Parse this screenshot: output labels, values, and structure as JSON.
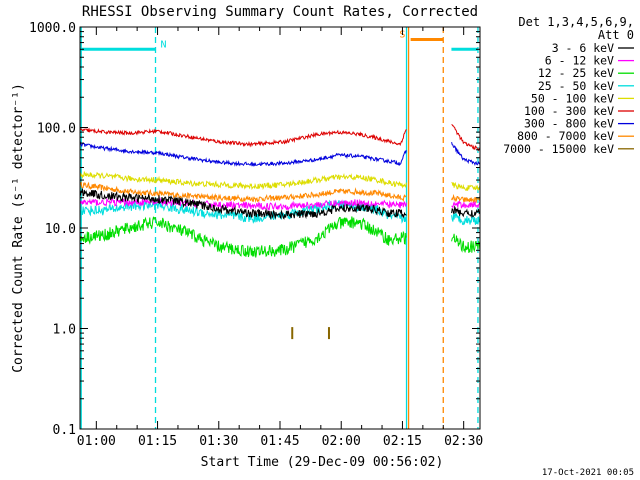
{
  "chart_data": {
    "type": "line",
    "title": "RHESSI Observing Summary Count Rates, Corrected",
    "xlabel": "Start Time (29-Dec-09 00:56:02)",
    "ylabel": "Corrected Count Rate (s⁻¹ detector⁻¹)",
    "yscale": "log",
    "ylim": [
      0.1,
      1000
    ],
    "xlim_minutes": [
      56,
      154
    ],
    "x_ticks": [
      {
        "value": 60,
        "label": "01:00"
      },
      {
        "value": 75,
        "label": "01:15"
      },
      {
        "value": 90,
        "label": "01:30"
      },
      {
        "value": 105,
        "label": "01:45"
      },
      {
        "value": 120,
        "label": "02:00"
      },
      {
        "value": 135,
        "label": "02:15"
      },
      {
        "value": 150,
        "label": "02:30"
      }
    ],
    "y_ticks": [
      {
        "value": 1000,
        "label": "1000.0"
      },
      {
        "value": 100,
        "label": "100.0"
      },
      {
        "value": 10,
        "label": "10.0"
      },
      {
        "value": 1,
        "label": "1.0"
      },
      {
        "value": 0.1,
        "label": "0.1"
      }
    ],
    "legend_header": [
      "Det 1,3,4,5,6,9,",
      "Att 0"
    ],
    "legend_position": "right",
    "gaps": [
      [
        136,
        147
      ]
    ],
    "time_points": [
      56,
      62,
      68,
      75,
      82,
      90,
      98,
      106,
      114,
      119,
      124,
      129,
      132,
      134.5,
      136,
      147,
      150,
      154
    ],
    "series": [
      {
        "name": "3 - 6 keV",
        "color": "#000000",
        "noise": 0.06,
        "values": [
          23,
          21,
          20,
          19.5,
          18,
          15.5,
          14,
          13.5,
          14,
          15.5,
          16,
          15,
          14,
          14,
          14,
          15,
          14,
          14
        ]
      },
      {
        "name": "6 - 12 keV",
        "color": "#ff00ff",
        "noise": 0.05,
        "values": [
          18,
          18,
          18,
          18,
          17.5,
          17,
          16.5,
          16.5,
          17,
          17.5,
          18,
          17.5,
          17,
          17,
          17,
          17,
          17,
          17
        ]
      },
      {
        "name": "12 - 25 keV",
        "color": "#00dd00",
        "noise": 0.09,
        "values": [
          8,
          8.5,
          10,
          11.5,
          9,
          6.5,
          5.8,
          6,
          8,
          11,
          11.5,
          9,
          7.5,
          8,
          8,
          8,
          6.5,
          6.5
        ]
      },
      {
        "name": "25 - 50 keV",
        "color": "#00dddd",
        "noise": 0.07,
        "values": [
          15,
          15,
          16.5,
          17,
          15,
          13.5,
          12.5,
          13.5,
          15.5,
          17,
          16.5,
          15,
          13,
          12.5,
          12.5,
          13,
          12,
          12
        ]
      },
      {
        "name": "50 - 100 keV",
        "color": "#dddd00",
        "noise": 0.04,
        "values": [
          34,
          33,
          31,
          30,
          28,
          27,
          26,
          27,
          30,
          32,
          32,
          30,
          28,
          27,
          27,
          27,
          25,
          25
        ]
      },
      {
        "name": "100 - 300 keV",
        "color": "#dd0000",
        "noise": 0.025,
        "values": [
          95,
          90,
          88,
          92,
          82,
          72,
          68,
          72,
          85,
          90,
          86,
          78,
          72,
          68,
          98,
          110,
          70,
          60
        ]
      },
      {
        "name": "300 - 800 keV",
        "color": "#0000dd",
        "noise": 0.025,
        "values": [
          68,
          62,
          58,
          56,
          50,
          45,
          43,
          44,
          48,
          53,
          52,
          48,
          46,
          44,
          60,
          70,
          48,
          43
        ]
      },
      {
        "name": "800 - 7000 keV",
        "color": "#ff8800",
        "noise": 0.04,
        "values": [
          27,
          25,
          23,
          22,
          21,
          20,
          19.5,
          20,
          21.5,
          23,
          23,
          22,
          21,
          20,
          20,
          20,
          19,
          19
        ]
      },
      {
        "name": "7000 - 15000 keV",
        "color": "#886600",
        "noise": 0.0,
        "values": []
      }
    ],
    "markers": [
      {
        "x": 108,
        "value": 0.9,
        "color": "#886600"
      },
      {
        "x": 117,
        "value": 0.9,
        "color": "#886600"
      }
    ],
    "annotations": [
      {
        "label": "N",
        "x": 75,
        "color": "#00dddd",
        "bar": [
          56,
          74.5
        ],
        "bar_value": 600,
        "bar_color": "#00dddd"
      },
      {
        "label": "S",
        "x": 136.2,
        "color": "#ff8800",
        "bar": [
          137,
          145
        ],
        "bar_value": 750,
        "bar_color": "#ff8800"
      },
      {
        "label": "",
        "x": 147,
        "color": "#00dddd",
        "bar": [
          147,
          153.5
        ],
        "bar_value": 600,
        "bar_color": "#00dddd"
      }
    ],
    "vertical_lines": [
      {
        "x": 56.3,
        "color": "#00dddd",
        "style": "solid"
      },
      {
        "x": 74.5,
        "color": "#00dddd",
        "style": "dashed"
      },
      {
        "x": 136,
        "color": "#00dddd",
        "style": "solid"
      },
      {
        "x": 136.5,
        "color": "#ff8800",
        "style": "solid"
      },
      {
        "x": 145,
        "color": "#ff8800",
        "style": "dashed"
      },
      {
        "x": 153.5,
        "color": "#00dddd",
        "style": "dashed"
      }
    ],
    "footer": "17-Oct-2021 00:05"
  }
}
